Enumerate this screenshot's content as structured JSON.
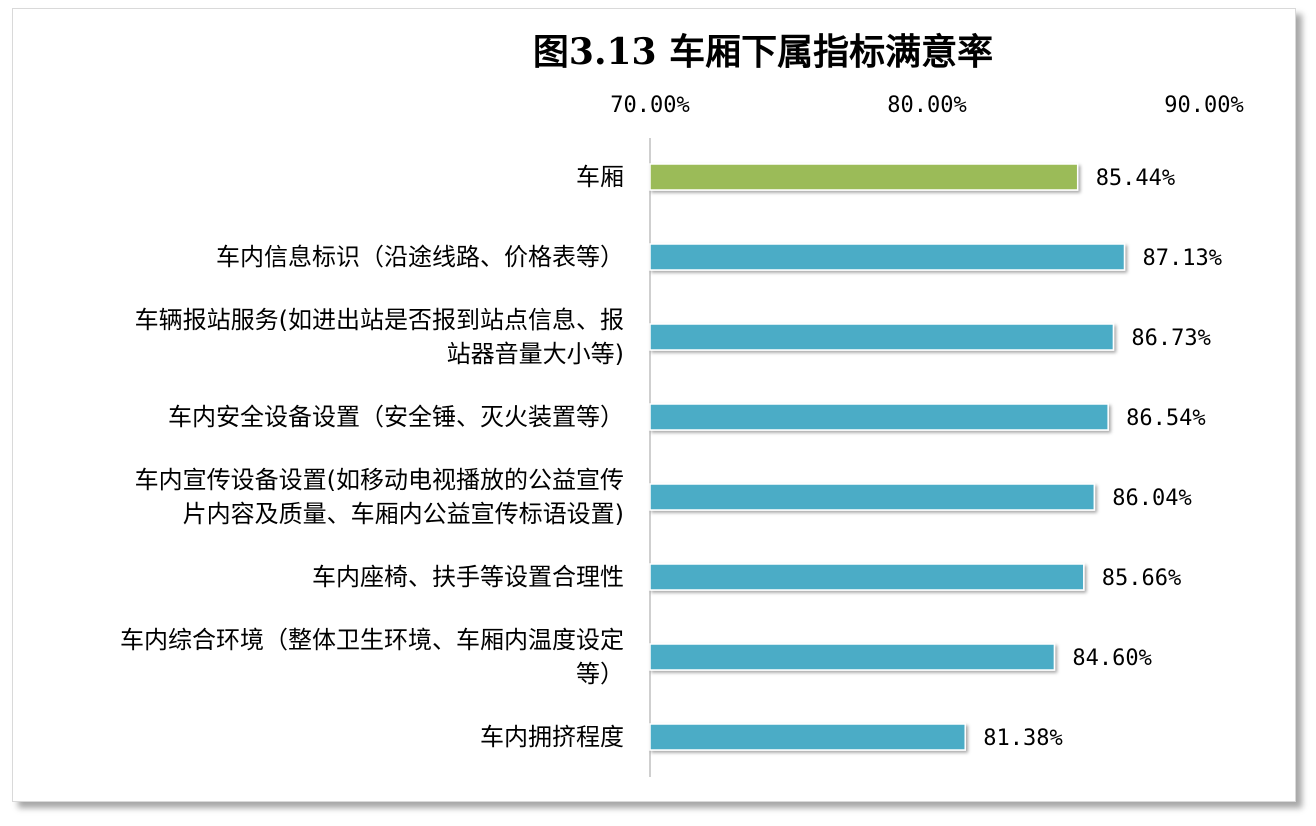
{
  "chart_data": {
    "type": "bar",
    "orientation": "horizontal",
    "title": "图3.13 车厢下属指标满意率",
    "xlim": [
      0.7,
      0.9
    ],
    "x_ticks": [
      "70.00%",
      "80.00%",
      "90.00%"
    ],
    "x_tick_values": [
      0.7,
      0.8,
      0.9
    ],
    "axis_position": "top",
    "grid": false,
    "legend": "none",
    "categories": [
      [
        "车厢"
      ],
      [
        "车内信息标识（沿途线路、价格表等）"
      ],
      [
        "车辆报站服务(如进出站是否报到站点信息、报",
        "站器音量大小等)"
      ],
      [
        "车内安全设备设置（安全锤、灭火装置等）"
      ],
      [
        "车内宣传设备设置(如移动电视播放的公益宣传",
        "片内容及质量、车厢内公益宣传标语设置)"
      ],
      [
        "车内座椅、扶手等设置合理性"
      ],
      [
        "车内综合环境（整体卫生环境、车厢内温度设定",
        "等）"
      ],
      [
        "车内拥挤程度"
      ]
    ],
    "values": [
      0.8544,
      0.8713,
      0.8673,
      0.8654,
      0.8604,
      0.8566,
      0.846,
      0.8138
    ],
    "data_labels": [
      "85.44%",
      "87.13%",
      "86.73%",
      "86.54%",
      "86.04%",
      "85.66%",
      "84.60%",
      "81.38%"
    ],
    "colors": [
      "#9bbb59",
      "#4bacc6",
      "#4bacc6",
      "#4bacc6",
      "#4bacc6",
      "#4bacc6",
      "#4bacc6",
      "#4bacc6"
    ]
  }
}
